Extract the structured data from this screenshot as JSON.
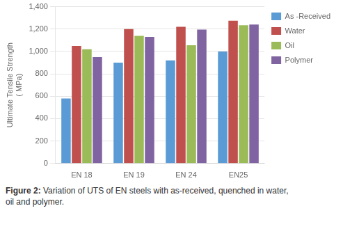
{
  "chart_data": {
    "type": "bar",
    "categories": [
      "EN 18",
      "EN 19",
      "EN 24",
      "EN25"
    ],
    "series": [
      {
        "name": "As -Received",
        "color": "#5B9BD5",
        "values": [
          580,
          900,
          920,
          1000
        ]
      },
      {
        "name": "Water",
        "color": "#C0504D",
        "values": [
          1050,
          1200,
          1220,
          1275
        ]
      },
      {
        "name": "Oil",
        "color": "#9BBB59",
        "values": [
          1020,
          1140,
          1055,
          1235
        ]
      },
      {
        "name": "Polymer",
        "color": "#8064A2",
        "values": [
          950,
          1130,
          1195,
          1240
        ]
      }
    ],
    "ylabel": [
      "Ultimate Tensile Strength",
      "( MPa)"
    ],
    "ylim": [
      0,
      1400
    ],
    "yticks": [
      0,
      200,
      400,
      600,
      800,
      1000,
      1200,
      1400
    ],
    "grid": true,
    "legend": "right",
    "annotations": [
      "Figure 2:",
      "Variation of UTS of EN steels with as-received, quenched in water,\noil and polymer."
    ]
  }
}
